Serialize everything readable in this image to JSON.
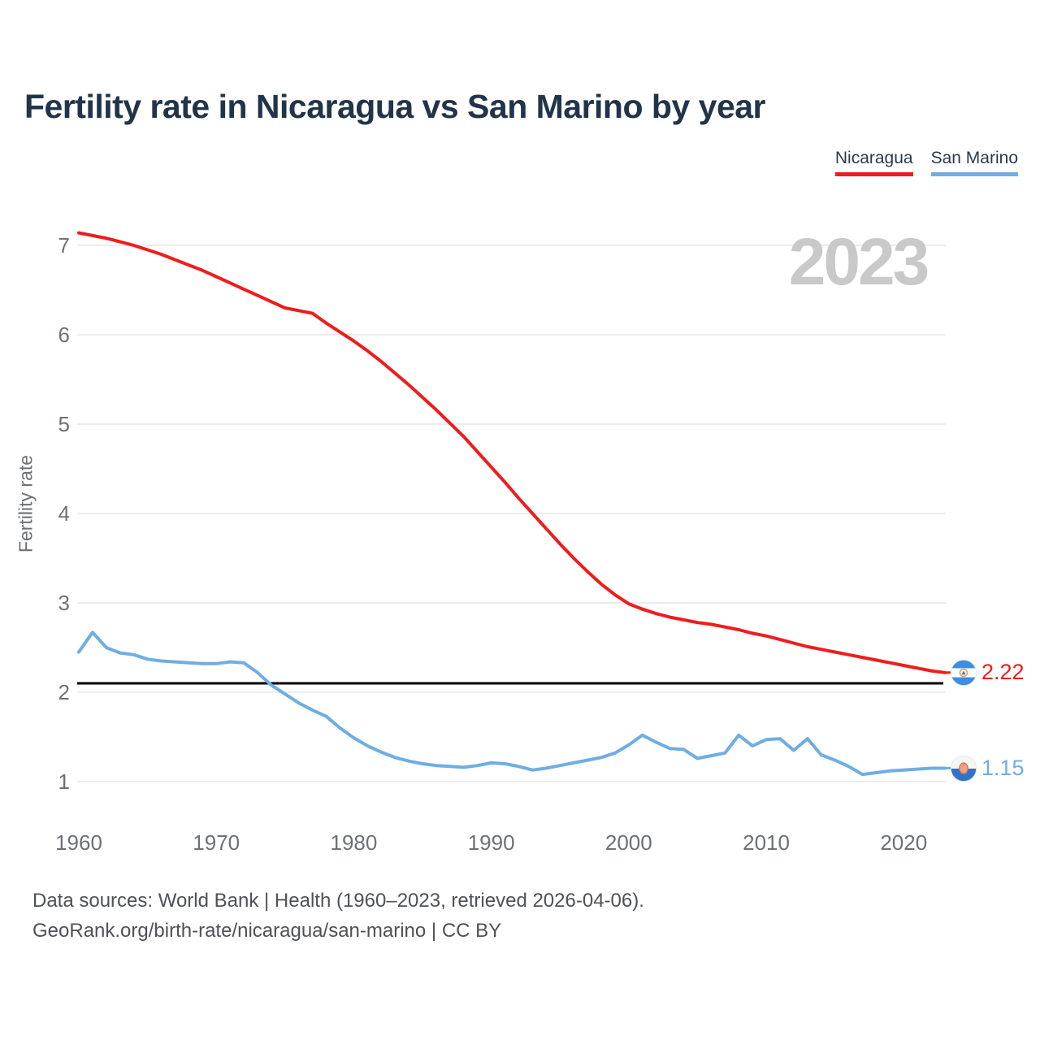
{
  "page": {
    "title": "Fertility rate in Nicaragua vs San Marino by year",
    "footer_line1": "Data sources: World Bank | Health (1960–2023, retrieved 2026-04-06).",
    "footer_line2": "GeoRank.org/birth-rate/nicaragua/san-marino | CC BY"
  },
  "legend": {
    "items": [
      {
        "label": "Nicaragua",
        "color": "#ee1d1d"
      },
      {
        "label": "San Marino",
        "color": "#6fade3"
      }
    ]
  },
  "chart_data": {
    "type": "line",
    "title": "Fertility rate in Nicaragua vs San Marino by year",
    "ylabel": "Fertility rate",
    "xlabel": "",
    "watermark": "2023",
    "x_start": 1960,
    "x_end": 2023,
    "x_ticks": [
      1960,
      1970,
      1980,
      1990,
      2000,
      2010,
      2020
    ],
    "y_ticks": [
      1,
      2,
      3,
      4,
      5,
      6,
      7
    ],
    "ylim": [
      0.9,
      7.2
    ],
    "grid": "horizontal",
    "legend_position": "top-right",
    "reference_line": {
      "value": 2.1,
      "color": "#000000"
    },
    "series": [
      {
        "name": "Nicaragua",
        "color": "#ee1d1d",
        "end_label": "2.22",
        "flag_icon": "nicaragua-flag-icon",
        "values": [
          7.14,
          7.11,
          7.08,
          7.04,
          7.0,
          6.95,
          6.9,
          6.84,
          6.78,
          6.72,
          6.65,
          6.58,
          6.51,
          6.44,
          6.37,
          6.3,
          6.27,
          6.24,
          6.13,
          6.03,
          5.93,
          5.82,
          5.7,
          5.57,
          5.44,
          5.3,
          5.16,
          5.01,
          4.86,
          4.69,
          4.52,
          4.35,
          4.17,
          4.0,
          3.83,
          3.66,
          3.5,
          3.35,
          3.21,
          3.09,
          2.99,
          2.93,
          2.88,
          2.84,
          2.81,
          2.78,
          2.76,
          2.73,
          2.7,
          2.66,
          2.63,
          2.59,
          2.55,
          2.51,
          2.48,
          2.45,
          2.42,
          2.39,
          2.36,
          2.33,
          2.3,
          2.27,
          2.24,
          2.22
        ]
      },
      {
        "name": "San Marino",
        "color": "#6fade3",
        "end_label": "1.15",
        "flag_icon": "san-marino-flag-icon",
        "values": [
          2.45,
          2.67,
          2.5,
          2.44,
          2.42,
          2.37,
          2.35,
          2.34,
          2.33,
          2.32,
          2.32,
          2.34,
          2.33,
          2.22,
          2.08,
          1.98,
          1.88,
          1.8,
          1.73,
          1.6,
          1.49,
          1.4,
          1.33,
          1.27,
          1.23,
          1.2,
          1.18,
          1.17,
          1.16,
          1.18,
          1.21,
          1.2,
          1.17,
          1.13,
          1.15,
          1.18,
          1.21,
          1.24,
          1.27,
          1.32,
          1.41,
          1.52,
          1.44,
          1.37,
          1.36,
          1.26,
          1.29,
          1.32,
          1.52,
          1.4,
          1.47,
          1.48,
          1.35,
          1.48,
          1.3,
          1.24,
          1.17,
          1.08,
          1.1,
          1.12,
          1.13,
          1.14,
          1.15,
          1.15
        ]
      }
    ]
  }
}
